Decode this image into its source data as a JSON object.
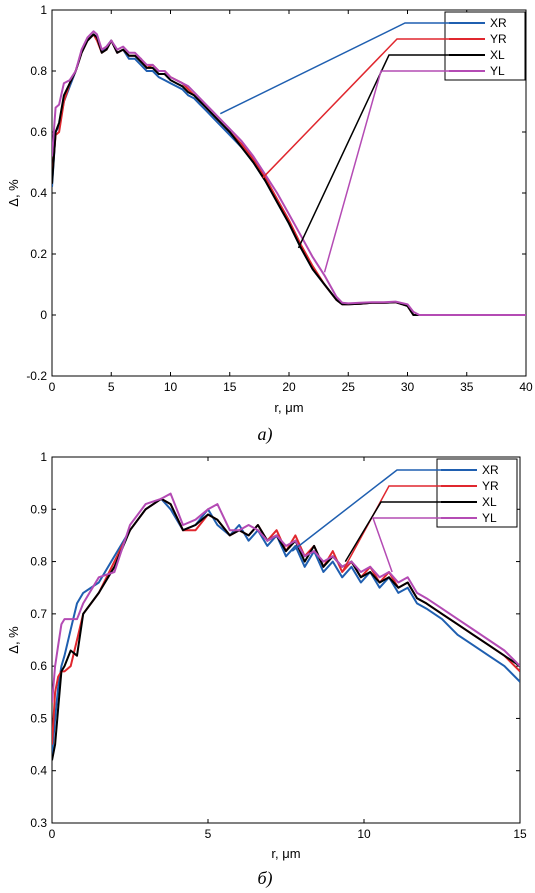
{
  "chart_data": [
    {
      "type": "line",
      "caption": "a)",
      "xlabel": "r, μm",
      "ylabel": "Δ, %",
      "xlim": [
        0,
        40
      ],
      "ylim": [
        -0.2,
        1
      ],
      "xticks": [
        "0",
        "5",
        "10",
        "15",
        "20",
        "25",
        "30",
        "35",
        "40"
      ],
      "yticks": [
        "-0.2",
        "0",
        "0.2",
        "0.4",
        "0.6",
        "0.8",
        "1"
      ],
      "legend_position": "top-right",
      "series": [
        {
          "name": "XR",
          "color": "#1f5fb0",
          "pointer_at": [
            14.2,
            0.66
          ],
          "x": [
            0,
            0.3,
            0.6,
            1.0,
            1.5,
            2.0,
            2.5,
            3.0,
            3.5,
            3.8,
            4.2,
            4.6,
            5.0,
            5.5,
            6.0,
            6.5,
            7.0,
            7.5,
            8.0,
            8.5,
            9.0,
            9.5,
            10.0,
            10.5,
            11.0,
            11.5,
            12.0,
            12.5,
            13.0,
            13.5,
            14.0,
            15.0,
            16.0,
            17.0,
            18.0,
            19.0,
            20.0,
            21.0,
            22.0,
            23.0,
            24.0,
            24.5,
            25.0,
            26.0,
            27.0,
            28.0,
            29.0,
            30.0,
            30.5,
            31.0,
            35.0,
            40.0
          ],
          "y": [
            0.42,
            0.6,
            0.62,
            0.7,
            0.75,
            0.8,
            0.86,
            0.9,
            0.92,
            0.91,
            0.86,
            0.88,
            0.9,
            0.86,
            0.87,
            0.84,
            0.84,
            0.82,
            0.8,
            0.8,
            0.78,
            0.77,
            0.76,
            0.75,
            0.74,
            0.72,
            0.71,
            0.69,
            0.67,
            0.65,
            0.63,
            0.59,
            0.55,
            0.5,
            0.44,
            0.37,
            0.3,
            0.22,
            0.15,
            0.1,
            0.05,
            0.035,
            0.035,
            0.037,
            0.04,
            0.04,
            0.042,
            0.03,
            0.0,
            0.0,
            0.0,
            0.0
          ]
        },
        {
          "name": "YR",
          "color": "#e0272e",
          "pointer_at": [
            17.8,
            0.45
          ],
          "x": [
            0,
            0.3,
            0.6,
            1.0,
            1.5,
            2.0,
            2.5,
            3.0,
            3.5,
            3.8,
            4.2,
            4.6,
            5.0,
            5.5,
            6.0,
            6.5,
            7.0,
            7.5,
            8.0,
            8.5,
            9.0,
            9.5,
            10.0,
            10.5,
            11.0,
            11.5,
            12.0,
            12.5,
            13.0,
            13.5,
            14.0,
            15.0,
            16.0,
            17.0,
            18.0,
            19.0,
            20.0,
            21.0,
            22.0,
            23.0,
            24.0,
            24.5,
            25.0,
            26.0,
            27.0,
            28.0,
            29.0,
            30.0,
            30.5,
            31.0,
            35.0,
            40.0
          ],
          "y": [
            0.45,
            0.59,
            0.6,
            0.7,
            0.76,
            0.8,
            0.86,
            0.9,
            0.92,
            0.9,
            0.86,
            0.87,
            0.9,
            0.86,
            0.87,
            0.85,
            0.85,
            0.84,
            0.81,
            0.82,
            0.8,
            0.8,
            0.78,
            0.77,
            0.76,
            0.74,
            0.72,
            0.7,
            0.68,
            0.66,
            0.64,
            0.6,
            0.56,
            0.51,
            0.45,
            0.38,
            0.31,
            0.23,
            0.16,
            0.1,
            0.05,
            0.035,
            0.035,
            0.037,
            0.04,
            0.04,
            0.042,
            0.03,
            0.0,
            0.0,
            0.0,
            0.0
          ]
        },
        {
          "name": "XL",
          "color": "#000000",
          "pointer_at": [
            20.8,
            0.22
          ],
          "x": [
            0,
            0.3,
            0.6,
            1.0,
            1.5,
            2.0,
            2.5,
            3.0,
            3.5,
            3.8,
            4.2,
            4.6,
            5.0,
            5.5,
            6.0,
            6.5,
            7.0,
            7.5,
            8.0,
            8.5,
            9.0,
            9.5,
            10.0,
            10.5,
            11.0,
            11.5,
            12.0,
            12.5,
            13.0,
            13.5,
            14.0,
            15.0,
            16.0,
            17.0,
            18.0,
            19.0,
            20.0,
            21.0,
            22.0,
            23.0,
            24.0,
            24.5,
            25.0,
            26.0,
            27.0,
            28.0,
            29.0,
            30.0,
            30.5,
            31.0,
            35.0,
            40.0
          ],
          "y": [
            0.43,
            0.6,
            0.63,
            0.72,
            0.76,
            0.8,
            0.86,
            0.9,
            0.92,
            0.91,
            0.86,
            0.87,
            0.9,
            0.86,
            0.87,
            0.85,
            0.85,
            0.83,
            0.81,
            0.81,
            0.79,
            0.79,
            0.77,
            0.76,
            0.75,
            0.73,
            0.72,
            0.7,
            0.68,
            0.66,
            0.64,
            0.6,
            0.55,
            0.5,
            0.44,
            0.37,
            0.3,
            0.22,
            0.15,
            0.1,
            0.05,
            0.035,
            0.035,
            0.037,
            0.04,
            0.04,
            0.042,
            0.03,
            0.0,
            0.0,
            0.0,
            0.0
          ]
        },
        {
          "name": "YL",
          "color": "#b44bb4",
          "pointer_at": [
            23.0,
            0.14
          ],
          "x": [
            0,
            0.3,
            0.6,
            1.0,
            1.5,
            2.0,
            2.5,
            3.0,
            3.5,
            3.8,
            4.2,
            4.6,
            5.0,
            5.5,
            6.0,
            6.5,
            7.0,
            7.5,
            8.0,
            8.5,
            9.0,
            9.5,
            10.0,
            10.5,
            11.0,
            11.5,
            12.0,
            12.5,
            13.0,
            13.5,
            14.0,
            15.0,
            16.0,
            17.0,
            18.0,
            19.0,
            20.0,
            21.0,
            22.0,
            23.0,
            24.0,
            24.5,
            25.0,
            26.0,
            27.0,
            28.0,
            29.0,
            30.0,
            30.5,
            31.0,
            35.0,
            40.0
          ],
          "y": [
            0.52,
            0.68,
            0.69,
            0.76,
            0.77,
            0.8,
            0.87,
            0.91,
            0.93,
            0.92,
            0.87,
            0.88,
            0.9,
            0.87,
            0.88,
            0.86,
            0.86,
            0.84,
            0.82,
            0.82,
            0.8,
            0.8,
            0.78,
            0.77,
            0.76,
            0.75,
            0.73,
            0.71,
            0.69,
            0.67,
            0.65,
            0.61,
            0.57,
            0.52,
            0.46,
            0.4,
            0.33,
            0.26,
            0.19,
            0.13,
            0.06,
            0.04,
            0.038,
            0.04,
            0.042,
            0.042,
            0.044,
            0.035,
            0.01,
            0.0,
            0.0,
            0.0
          ]
        }
      ]
    },
    {
      "type": "line",
      "caption": "б)",
      "xlabel": "r, μm",
      "ylabel": "Δ, %",
      "xlim": [
        0,
        15
      ],
      "ylim": [
        0.3,
        1
      ],
      "xticks": [
        "0",
        "5",
        "10",
        "15"
      ],
      "yticks": [
        "0.3",
        "0.4",
        "0.5",
        "0.6",
        "0.7",
        "0.8",
        "0.9",
        "1"
      ],
      "legend_position": "top-right",
      "series": [
        {
          "name": "XR",
          "color": "#1f5fb0",
          "pointer_at": [
            7.7,
            0.82
          ],
          "x": [
            0,
            0.1,
            0.2,
            0.3,
            0.4,
            0.6,
            0.8,
            1.0,
            1.5,
            2.0,
            2.5,
            3.0,
            3.5,
            3.8,
            4.2,
            4.6,
            5.0,
            5.3,
            5.7,
            6.0,
            6.3,
            6.6,
            6.9,
            7.2,
            7.5,
            7.8,
            8.1,
            8.4,
            8.7,
            9.0,
            9.3,
            9.6,
            9.9,
            10.2,
            10.5,
            10.8,
            11.1,
            11.4,
            11.7,
            12.0,
            12.5,
            13.0,
            13.5,
            14.0,
            14.5,
            15.0
          ],
          "y": [
            0.43,
            0.5,
            0.56,
            0.6,
            0.62,
            0.67,
            0.72,
            0.74,
            0.76,
            0.81,
            0.86,
            0.9,
            0.92,
            0.9,
            0.86,
            0.87,
            0.9,
            0.87,
            0.85,
            0.87,
            0.84,
            0.86,
            0.83,
            0.85,
            0.81,
            0.83,
            0.79,
            0.82,
            0.78,
            0.8,
            0.77,
            0.79,
            0.76,
            0.78,
            0.75,
            0.77,
            0.74,
            0.75,
            0.72,
            0.71,
            0.69,
            0.66,
            0.64,
            0.62,
            0.6,
            0.57
          ]
        },
        {
          "name": "YR",
          "color": "#e0272e",
          "pointer_at": [
            9.3,
            0.78
          ],
          "x": [
            0,
            0.1,
            0.2,
            0.3,
            0.4,
            0.6,
            0.8,
            1.0,
            1.5,
            2.0,
            2.5,
            3.0,
            3.5,
            3.8,
            4.2,
            4.6,
            5.0,
            5.3,
            5.7,
            6.0,
            6.3,
            6.6,
            6.9,
            7.2,
            7.5,
            7.8,
            8.1,
            8.4,
            8.7,
            9.0,
            9.3,
            9.6,
            9.9,
            10.2,
            10.5,
            10.8,
            11.1,
            11.4,
            11.7,
            12.0,
            12.5,
            13.0,
            13.5,
            14.0,
            14.5,
            15.0
          ],
          "y": [
            0.45,
            0.55,
            0.58,
            0.59,
            0.59,
            0.6,
            0.65,
            0.7,
            0.74,
            0.8,
            0.86,
            0.9,
            0.92,
            0.91,
            0.86,
            0.86,
            0.89,
            0.88,
            0.85,
            0.86,
            0.85,
            0.87,
            0.84,
            0.86,
            0.82,
            0.85,
            0.81,
            0.83,
            0.79,
            0.82,
            0.78,
            0.8,
            0.77,
            0.79,
            0.76,
            0.78,
            0.75,
            0.76,
            0.73,
            0.72,
            0.7,
            0.68,
            0.66,
            0.64,
            0.62,
            0.59
          ]
        },
        {
          "name": "XL",
          "color": "#000000",
          "pointer_at": [
            9.4,
            0.8
          ],
          "x": [
            0,
            0.1,
            0.2,
            0.3,
            0.4,
            0.6,
            0.8,
            1.0,
            1.5,
            2.0,
            2.5,
            3.0,
            3.5,
            3.8,
            4.2,
            4.6,
            5.0,
            5.3,
            5.7,
            6.0,
            6.3,
            6.6,
            6.9,
            7.2,
            7.5,
            7.8,
            8.1,
            8.4,
            8.7,
            9.0,
            9.3,
            9.6,
            9.9,
            10.2,
            10.5,
            10.8,
            11.1,
            11.4,
            11.7,
            12.0,
            12.5,
            13.0,
            13.5,
            14.0,
            14.5,
            15.0
          ],
          "y": [
            0.42,
            0.45,
            0.52,
            0.59,
            0.6,
            0.63,
            0.62,
            0.7,
            0.74,
            0.79,
            0.86,
            0.9,
            0.92,
            0.91,
            0.86,
            0.87,
            0.89,
            0.88,
            0.85,
            0.86,
            0.85,
            0.87,
            0.84,
            0.85,
            0.82,
            0.84,
            0.8,
            0.83,
            0.79,
            0.81,
            0.79,
            0.8,
            0.77,
            0.78,
            0.76,
            0.77,
            0.75,
            0.76,
            0.73,
            0.72,
            0.7,
            0.68,
            0.66,
            0.64,
            0.62,
            0.6
          ]
        },
        {
          "name": "YL",
          "color": "#b44bb4",
          "pointer_at": [
            10.9,
            0.78
          ],
          "x": [
            0,
            0.1,
            0.2,
            0.3,
            0.4,
            0.6,
            0.8,
            1.0,
            1.5,
            2.0,
            2.5,
            3.0,
            3.5,
            3.8,
            4.2,
            4.6,
            5.0,
            5.3,
            5.7,
            6.0,
            6.3,
            6.6,
            6.9,
            7.2,
            7.5,
            7.8,
            8.1,
            8.4,
            8.7,
            9.0,
            9.3,
            9.6,
            9.9,
            10.2,
            10.5,
            10.8,
            11.1,
            11.4,
            11.7,
            12.0,
            12.5,
            13.0,
            13.5,
            14.0,
            14.5,
            15.0
          ],
          "y": [
            0.53,
            0.6,
            0.64,
            0.68,
            0.69,
            0.69,
            0.69,
            0.72,
            0.77,
            0.78,
            0.87,
            0.91,
            0.92,
            0.93,
            0.87,
            0.88,
            0.9,
            0.91,
            0.86,
            0.86,
            0.87,
            0.86,
            0.84,
            0.85,
            0.83,
            0.84,
            0.81,
            0.82,
            0.8,
            0.81,
            0.79,
            0.8,
            0.78,
            0.79,
            0.77,
            0.78,
            0.76,
            0.77,
            0.74,
            0.73,
            0.71,
            0.69,
            0.67,
            0.65,
            0.63,
            0.6
          ]
        }
      ]
    }
  ]
}
